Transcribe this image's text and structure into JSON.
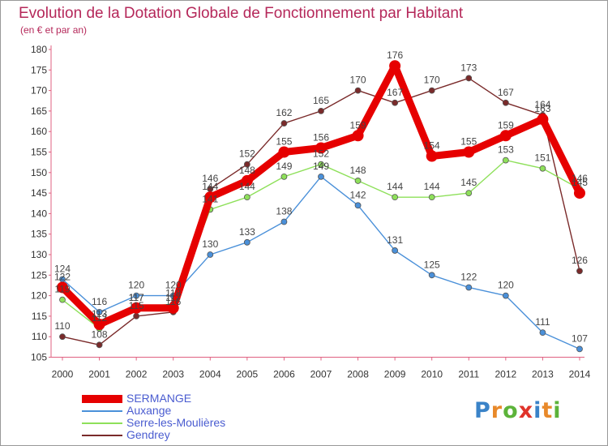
{
  "title": "Evolution de la Dotation Globale de Fonctionnement par Habitant",
  "subtitle": "(en € et par an)",
  "logo_text": "Proxiti",
  "logo_colors": [
    "#3a83c8",
    "#e8892a",
    "#5cb33a",
    "#e0332a",
    "#3a83c8",
    "#e8892a",
    "#5cb33a"
  ],
  "chart_data": {
    "type": "line",
    "x": [
      "2000",
      "2001",
      "2002",
      "2003",
      "2004",
      "2005",
      "2006",
      "2007",
      "2008",
      "2009",
      "2010",
      "2011",
      "2012",
      "2013",
      "2014"
    ],
    "ylim": [
      105,
      180
    ],
    "yticks": [
      105,
      110,
      115,
      120,
      125,
      130,
      135,
      140,
      145,
      150,
      155,
      160,
      165,
      170,
      175,
      180
    ],
    "grid": false,
    "legend_position": "bottom-left",
    "series": [
      {
        "name": "SERMANGE",
        "color": "#e60000",
        "values": [
          122,
          113,
          117,
          117,
          144,
          148,
          155,
          156,
          159,
          176,
          154,
          155,
          159,
          163,
          145
        ]
      },
      {
        "name": "Auxange",
        "color": "#4a90d9",
        "values": [
          124,
          116,
          120,
          120,
          130,
          133,
          138,
          149,
          142,
          131,
          125,
          122,
          120,
          111,
          107
        ]
      },
      {
        "name": "Serre-les-Moulières",
        "color": "#8ee05a",
        "values": [
          119,
          112,
          117,
          118,
          141,
          144,
          149,
          152,
          148,
          144,
          144,
          145,
          153,
          151,
          146
        ]
      },
      {
        "name": "Gendrey",
        "color": "#7a2a2a",
        "values": [
          110,
          108,
          115,
          116,
          146,
          152,
          162,
          165,
          170,
          167,
          170,
          173,
          167,
          164,
          126
        ]
      }
    ]
  }
}
